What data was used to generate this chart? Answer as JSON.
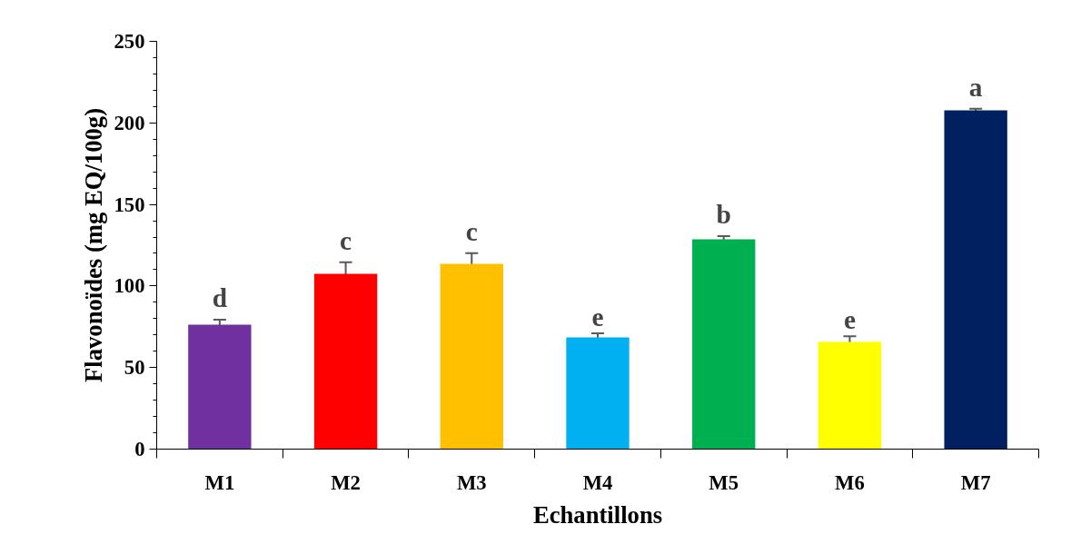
{
  "chart_data": {
    "type": "bar",
    "xlabel": "Echantillons",
    "ylabel": "Flavonoïdes (mg EQ/100g)",
    "categories": [
      "M1",
      "M2",
      "M3",
      "M4",
      "M5",
      "M6",
      "M7"
    ],
    "values": [
      76.3,
      107.5,
      113.6,
      68.5,
      128.6,
      65.7,
      207.7
    ],
    "colors": [
      "#7030a0",
      "#ff0000",
      "#ffc000",
      "#00b0f0",
      "#00b050",
      "#ffff00",
      "#002060"
    ],
    "errors": [
      3,
      7,
      6.5,
      2.5,
      2,
      3.5,
      1
    ],
    "ylim": [
      0,
      250
    ],
    "yticks": [
      0,
      50,
      100,
      150,
      200,
      250
    ],
    "grid": false,
    "annotations": [
      {
        "text": "d",
        "x": "M1",
        "y": 79.3
      },
      {
        "text": "c",
        "x": "M2",
        "y": 114.5
      },
      {
        "text": "c",
        "x": "M3",
        "y": 120.1
      },
      {
        "text": "e",
        "x": "M4",
        "y": 71
      },
      {
        "text": "b",
        "x": "M5",
        "y": 130.6
      },
      {
        "text": "e",
        "x": "M6",
        "y": 69.2
      },
      {
        "text": "a",
        "x": "M7",
        "y": 208.7
      }
    ]
  }
}
